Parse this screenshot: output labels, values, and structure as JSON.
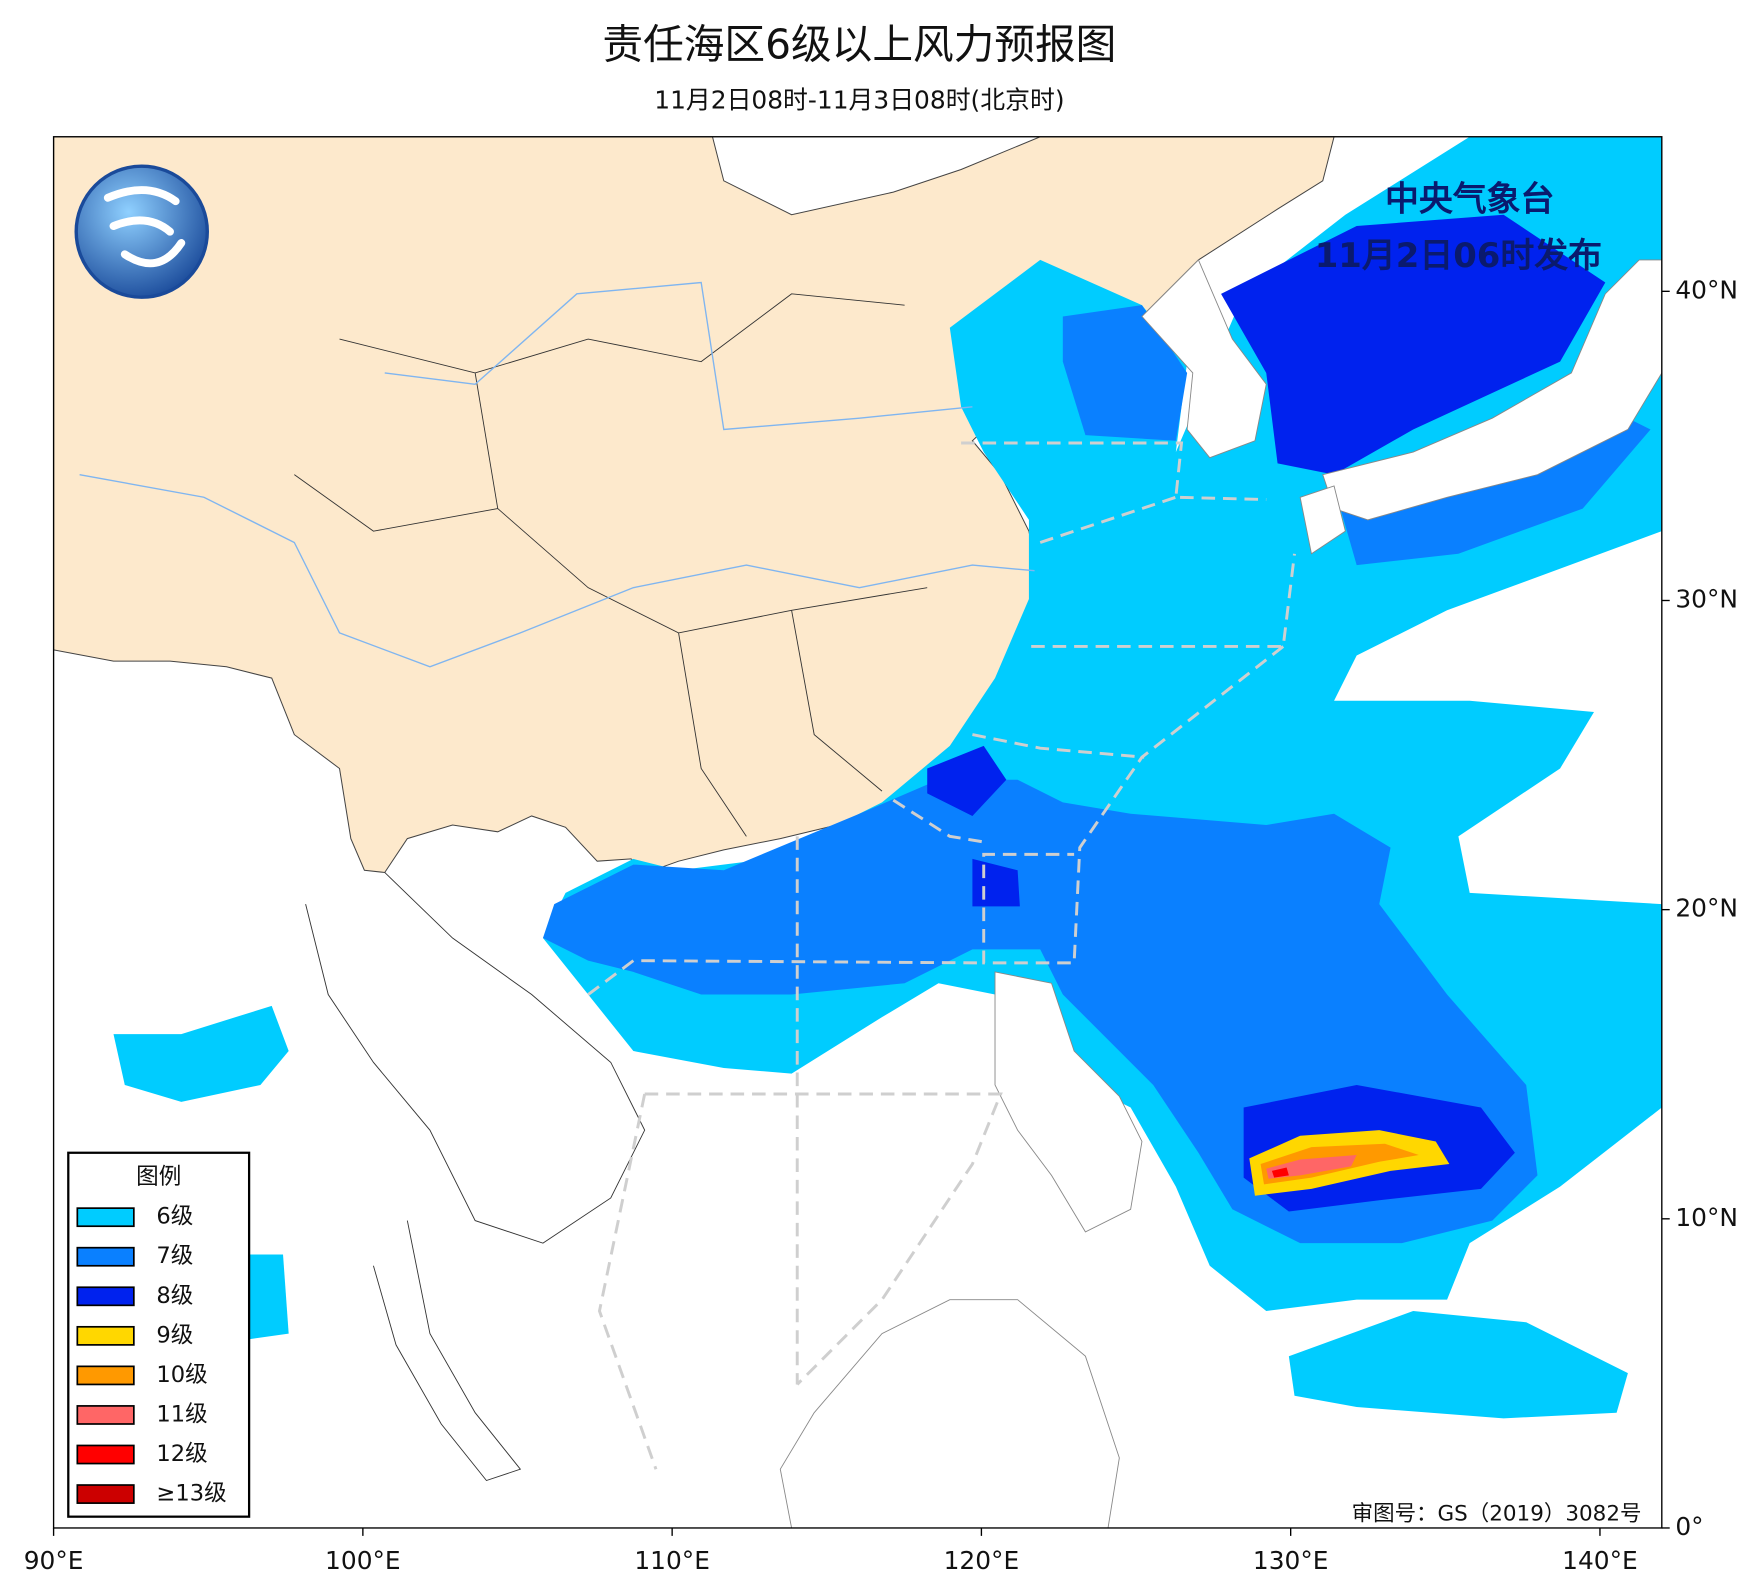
{
  "header": {
    "title": "责任海区6级以上风力预报图",
    "subtitle": "11月2日08时-11月3日08时(北京时)"
  },
  "issuer": [
    "中央气象台",
    "11月2日06时发布"
  ],
  "review_number": "审图号：GS（2019）3082号",
  "map": {
    "xlim": [
      90,
      142
    ],
    "ylim": [
      0,
      45
    ],
    "xticks": [
      {
        "value": 90,
        "label": "90°E"
      },
      {
        "value": 100,
        "label": "100°E"
      },
      {
        "value": 110,
        "label": "110°E"
      },
      {
        "value": 120,
        "label": "120°E"
      },
      {
        "value": 130,
        "label": "130°E"
      },
      {
        "value": 140,
        "label": "140°E"
      }
    ],
    "yticks": [
      {
        "value": 0,
        "label": "0°"
      },
      {
        "value": 10,
        "label": "10°N"
      },
      {
        "value": 20,
        "label": "20°N"
      },
      {
        "value": 30,
        "label": "30°N"
      },
      {
        "value": 40,
        "label": "40°N"
      }
    ]
  },
  "legend": {
    "title": "图例",
    "items": [
      {
        "label": "6级",
        "color": "#00ccff"
      },
      {
        "label": "7级",
        "color": "#0a80ff"
      },
      {
        "label": "8级",
        "color": "#0022ee"
      },
      {
        "label": "9级",
        "color": "#ffd700"
      },
      {
        "label": "10级",
        "color": "#ff9900"
      },
      {
        "label": "11级",
        "color": "#ff6666"
      },
      {
        "label": "12级",
        "color": "#ff0000"
      },
      {
        "label": "≥13级",
        "color": "#cc0000"
      }
    ]
  }
}
